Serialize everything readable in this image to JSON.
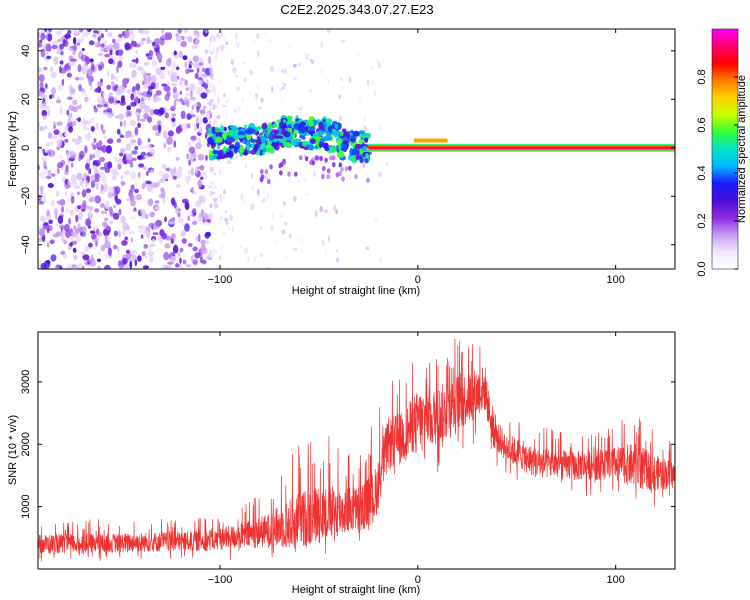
{
  "figure": {
    "title": "C2E2.2025.343.07.27.E23"
  },
  "chart_data": [
    {
      "type": "heatmap",
      "panel": "spectrogram",
      "xlabel": "Height of straight line (km)",
      "ylabel": "Frequency (Hz)",
      "xlim": [
        -192,
        130
      ],
      "ylim": [
        -50,
        49
      ],
      "x_ticks": [
        -100,
        0,
        100
      ],
      "y_ticks": [
        -40,
        -20,
        0,
        20,
        40
      ],
      "colorbar": {
        "label": "Normalized spectral amplitude",
        "range": [
          0,
          1
        ],
        "ticks": [
          0.0,
          0.2,
          0.4,
          0.6,
          0.8
        ],
        "colormap": [
          "#ffffff",
          "#f2e6ff",
          "#c79cf2",
          "#8a2be2",
          "#4b0fd6",
          "#1a1aff",
          "#00b7ff",
          "#00e5c8",
          "#33ff33",
          "#c8ff00",
          "#ffd000",
          "#ff7a00",
          "#ff0000",
          "#ff006e",
          "#ff00ff"
        ]
      },
      "regions": [
        {
          "x_range": [
            -192,
            -105
          ],
          "freq_range": [
            -50,
            49
          ],
          "level": "0.1-0.3",
          "description": "broadband noise"
        },
        {
          "x_range": [
            -105,
            -25
          ],
          "freq_center": [
            2,
            8
          ],
          "level": "0.3-0.6",
          "description": "drifting signal band"
        },
        {
          "x_range": [
            -25,
            130
          ],
          "freq_center": 0,
          "level": "0.9-1.0",
          "description": "steady narrow carrier"
        }
      ]
    },
    {
      "type": "line",
      "panel": "snr",
      "xlabel": "Height of straight line (km)",
      "ylabel": "SNR (10 * v/v)",
      "xlim": [
        -192,
        130
      ],
      "ylim": [
        0,
        3800
      ],
      "x_ticks": [
        -100,
        0,
        100
      ],
      "y_ticks": [
        1000,
        2000,
        3000
      ],
      "color": "#ee3333",
      "envelope": {
        "x": [
          -192,
          -150,
          -110,
          -90,
          -75,
          -60,
          -50,
          -40,
          -30,
          -22,
          -15,
          -8,
          0,
          10,
          20,
          28,
          34,
          38,
          45,
          60,
          80,
          100,
          110,
          120,
          130
        ],
        "mean": [
          400,
          420,
          450,
          520,
          620,
          780,
          880,
          920,
          960,
          1150,
          2000,
          2100,
          2400,
          2450,
          2650,
          2800,
          2900,
          2200,
          1950,
          1700,
          1650,
          1700,
          1650,
          1550,
          1500
        ],
        "peak": [
          800,
          800,
          850,
          1050,
          1400,
          2250,
          2350,
          2000,
          2000,
          2400,
          3000,
          3100,
          3500,
          3600,
          3750,
          3700,
          3750,
          2600,
          2450,
          2300,
          2200,
          2300,
          2600,
          2200,
          2000
        ],
        "trough": [
          100,
          100,
          100,
          150,
          150,
          200,
          200,
          200,
          300,
          500,
          1100,
          1200,
          1400,
          1500,
          1600,
          1900,
          2100,
          1500,
          1400,
          1200,
          1150,
          1150,
          950,
          950,
          1000
        ]
      }
    }
  ]
}
